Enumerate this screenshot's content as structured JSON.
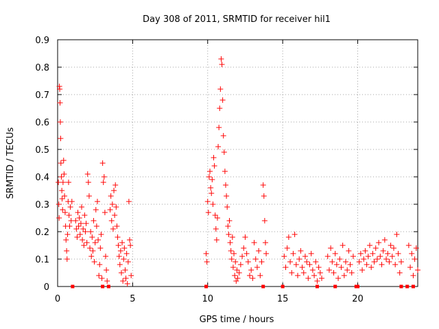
{
  "chart_data": {
    "type": "scatter",
    "title": "Day 308 of 2011, SRMTID for receiver hil1",
    "xlabel": "GPS time / hours",
    "ylabel": "SRMTID / TECUs",
    "xlim": [
      0,
      24
    ],
    "ylim": [
      0,
      0.9
    ],
    "xticks": [
      0,
      5,
      10,
      15,
      20
    ],
    "xtick_labels": [
      "0",
      "5",
      "10",
      "15",
      "20"
    ],
    "yticks": [
      0,
      0.1,
      0.2,
      0.3,
      0.4,
      0.5,
      0.6,
      0.7,
      0.8,
      0.9
    ],
    "ytick_labels": [
      "0",
      "0.1",
      "0.2",
      "0.3",
      "0.4",
      "0.5",
      "0.6",
      "0.7",
      "0.8",
      "0.9"
    ],
    "grid": true,
    "marker": "+",
    "color": "#ff0000",
    "series": [
      {
        "name": "SRMTID",
        "points": [
          [
            0.05,
            0.38
          ],
          [
            0.08,
            0.3
          ],
          [
            0.1,
            0.25
          ],
          [
            0.12,
            0.73
          ],
          [
            0.14,
            0.72
          ],
          [
            0.16,
            0.67
          ],
          [
            0.18,
            0.6
          ],
          [
            0.2,
            0.54
          ],
          [
            0.22,
            0.45
          ],
          [
            0.25,
            0.4
          ],
          [
            0.28,
            0.35
          ],
          [
            0.3,
            0.32
          ],
          [
            0.33,
            0.28
          ],
          [
            0.36,
            0.38
          ],
          [
            0.4,
            0.46
          ],
          [
            0.43,
            0.41
          ],
          [
            0.46,
            0.33
          ],
          [
            0.5,
            0.27
          ],
          [
            0.53,
            0.22
          ],
          [
            0.56,
            0.17
          ],
          [
            0.6,
            0.13
          ],
          [
            0.63,
            0.1
          ],
          [
            0.66,
            0.19
          ],
          [
            0.7,
            0.31
          ],
          [
            0.73,
            0.38
          ],
          [
            0.76,
            0.26
          ],
          [
            0.8,
            0.22
          ],
          [
            0.85,
            0.29
          ],
          [
            0.9,
            0.24
          ],
          [
            0.95,
            0.31
          ],
          [
            1.2,
            0.24
          ],
          [
            1.25,
            0.21
          ],
          [
            1.3,
            0.18
          ],
          [
            1.35,
            0.27
          ],
          [
            1.4,
            0.22
          ],
          [
            1.45,
            0.25
          ],
          [
            1.5,
            0.19
          ],
          [
            1.55,
            0.23
          ],
          [
            1.6,
            0.29
          ],
          [
            1.65,
            0.17
          ],
          [
            1.7,
            0.21
          ],
          [
            1.75,
            0.15
          ],
          [
            1.8,
            0.26
          ],
          [
            1.85,
            0.2
          ],
          [
            1.9,
            0.23
          ],
          [
            1.95,
            0.16
          ],
          [
            2.0,
            0.41
          ],
          [
            2.05,
            0.38
          ],
          [
            2.1,
            0.33
          ],
          [
            2.15,
            0.14
          ],
          [
            2.2,
            0.2
          ],
          [
            2.25,
            0.11
          ],
          [
            2.3,
            0.18
          ],
          [
            2.35,
            0.13
          ],
          [
            2.4,
            0.24
          ],
          [
            2.45,
            0.09
          ],
          [
            2.5,
            0.16
          ],
          [
            2.55,
            0.28
          ],
          [
            2.6,
            0.22
          ],
          [
            2.65,
            0.31
          ],
          [
            2.7,
            0.17
          ],
          [
            2.75,
            0.04
          ],
          [
            2.8,
            0.08
          ],
          [
            2.85,
            0.14
          ],
          [
            2.9,
            0.19
          ],
          [
            2.95,
            0.03
          ],
          [
            3.0,
            0.45
          ],
          [
            3.05,
            0.38
          ],
          [
            3.1,
            0.4
          ],
          [
            3.15,
            0.27
          ],
          [
            3.2,
            0.11
          ],
          [
            3.25,
            0.06
          ],
          [
            3.3,
            0.02
          ],
          [
            3.5,
            0.28
          ],
          [
            3.55,
            0.33
          ],
          [
            3.6,
            0.24
          ],
          [
            3.65,
            0.3
          ],
          [
            3.7,
            0.21
          ],
          [
            3.75,
            0.35
          ],
          [
            3.8,
            0.26
          ],
          [
            3.85,
            0.37
          ],
          [
            3.9,
            0.29
          ],
          [
            3.95,
            0.22
          ],
          [
            4.0,
            0.18
          ],
          [
            4.05,
            0.15
          ],
          [
            4.1,
            0.11
          ],
          [
            4.15,
            0.08
          ],
          [
            4.2,
            0.13
          ],
          [
            4.25,
            0.05
          ],
          [
            4.3,
            0.16
          ],
          [
            4.35,
            0.02
          ],
          [
            4.4,
            0.1
          ],
          [
            4.45,
            0.14
          ],
          [
            4.5,
            0.06
          ],
          [
            4.55,
            0.03
          ],
          [
            4.6,
            0.12
          ],
          [
            4.65,
            0.01
          ],
          [
            4.7,
            0.09
          ],
          [
            4.75,
            0.31
          ],
          [
            4.8,
            0.17
          ],
          [
            4.85,
            0.15
          ],
          [
            4.9,
            0.04
          ],
          [
            9.9,
            0.12
          ],
          [
            9.95,
            0.09
          ],
          [
            10.0,
            0.31
          ],
          [
            10.05,
            0.27
          ],
          [
            10.1,
            0.4
          ],
          [
            10.15,
            0.42
          ],
          [
            10.2,
            0.36
          ],
          [
            10.25,
            0.34
          ],
          [
            10.3,
            0.39
          ],
          [
            10.35,
            0.3
          ],
          [
            10.4,
            0.47
          ],
          [
            10.45,
            0.44
          ],
          [
            10.5,
            0.26
          ],
          [
            10.55,
            0.21
          ],
          [
            10.6,
            0.17
          ],
          [
            10.65,
            0.25
          ],
          [
            10.7,
            0.51
          ],
          [
            10.75,
            0.58
          ],
          [
            10.8,
            0.65
          ],
          [
            10.85,
            0.72
          ],
          [
            10.9,
            0.83
          ],
          [
            10.95,
            0.81
          ],
          [
            11.0,
            0.68
          ],
          [
            11.05,
            0.55
          ],
          [
            11.1,
            0.49
          ],
          [
            11.15,
            0.42
          ],
          [
            11.2,
            0.37
          ],
          [
            11.25,
            0.33
          ],
          [
            11.3,
            0.29
          ],
          [
            11.35,
            0.22
          ],
          [
            11.4,
            0.19
          ],
          [
            11.45,
            0.24
          ],
          [
            11.5,
            0.16
          ],
          [
            11.55,
            0.13
          ],
          [
            11.6,
            0.1
          ],
          [
            11.65,
            0.18
          ],
          [
            11.7,
            0.07
          ],
          [
            11.75,
            0.12
          ],
          [
            11.8,
            0.04
          ],
          [
            11.85,
            0.09
          ],
          [
            11.9,
            0.02
          ],
          [
            11.95,
            0.06
          ],
          [
            12.0,
            0.03
          ],
          [
            12.1,
            0.05
          ],
          [
            12.2,
            0.08
          ],
          [
            12.3,
            0.11
          ],
          [
            12.4,
            0.14
          ],
          [
            12.5,
            0.18
          ],
          [
            12.6,
            0.12
          ],
          [
            12.7,
            0.09
          ],
          [
            12.8,
            0.04
          ],
          [
            12.9,
            0.06
          ],
          [
            13.0,
            0.03
          ],
          [
            13.1,
            0.16
          ],
          [
            13.2,
            0.1
          ],
          [
            13.3,
            0.07
          ],
          [
            13.4,
            0.13
          ],
          [
            13.5,
            0.04
          ],
          [
            13.6,
            0.09
          ],
          [
            13.7,
            0.37
          ],
          [
            13.75,
            0.33
          ],
          [
            13.8,
            0.24
          ],
          [
            13.85,
            0.16
          ],
          [
            13.9,
            0.12
          ],
          [
            15.1,
            0.11
          ],
          [
            15.2,
            0.07
          ],
          [
            15.3,
            0.14
          ],
          [
            15.4,
            0.18
          ],
          [
            15.5,
            0.09
          ],
          [
            15.6,
            0.05
          ],
          [
            15.7,
            0.12
          ],
          [
            15.8,
            0.19
          ],
          [
            15.9,
            0.08
          ],
          [
            16.0,
            0.04
          ],
          [
            16.1,
            0.1
          ],
          [
            16.2,
            0.13
          ],
          [
            16.3,
            0.07
          ],
          [
            16.4,
            0.05
          ],
          [
            16.5,
            0.11
          ],
          [
            16.6,
            0.09
          ],
          [
            16.7,
            0.03
          ],
          [
            16.8,
            0.08
          ],
          [
            16.9,
            0.12
          ],
          [
            17.0,
            0.06
          ],
          [
            17.1,
            0.04
          ],
          [
            17.2,
            0.09
          ],
          [
            17.3,
            0.02
          ],
          [
            17.4,
            0.07
          ],
          [
            17.5,
            0.05
          ],
          [
            17.6,
            0.03
          ],
          [
            18.0,
            0.11
          ],
          [
            18.1,
            0.06
          ],
          [
            18.2,
            0.14
          ],
          [
            18.3,
            0.09
          ],
          [
            18.4,
            0.05
          ],
          [
            18.5,
            0.12
          ],
          [
            18.6,
            0.08
          ],
          [
            18.7,
            0.03
          ],
          [
            18.8,
            0.1
          ],
          [
            18.9,
            0.07
          ],
          [
            19.0,
            0.15
          ],
          [
            19.1,
            0.04
          ],
          [
            19.2,
            0.09
          ],
          [
            19.3,
            0.06
          ],
          [
            19.4,
            0.13
          ],
          [
            19.5,
            0.08
          ],
          [
            19.6,
            0.05
          ],
          [
            19.7,
            0.11
          ],
          [
            20.1,
            0.09
          ],
          [
            20.2,
            0.12
          ],
          [
            20.3,
            0.06
          ],
          [
            20.4,
            0.1
          ],
          [
            20.5,
            0.13
          ],
          [
            20.6,
            0.08
          ],
          [
            20.7,
            0.11
          ],
          [
            20.8,
            0.15
          ],
          [
            20.9,
            0.07
          ],
          [
            21.0,
            0.12
          ],
          [
            21.1,
            0.09
          ],
          [
            21.2,
            0.14
          ],
          [
            21.3,
            0.1
          ],
          [
            21.4,
            0.16
          ],
          [
            21.5,
            0.11
          ],
          [
            21.6,
            0.08
          ],
          [
            21.7,
            0.13
          ],
          [
            21.8,
            0.17
          ],
          [
            21.9,
            0.1
          ],
          [
            22.0,
            0.12
          ],
          [
            22.1,
            0.09
          ],
          [
            22.2,
            0.15
          ],
          [
            22.3,
            0.11
          ],
          [
            22.4,
            0.14
          ],
          [
            22.5,
            0.08
          ],
          [
            22.6,
            0.19
          ],
          [
            22.7,
            0.12
          ],
          [
            22.8,
            0.05
          ],
          [
            22.9,
            0.09
          ],
          [
            23.4,
            0.15
          ],
          [
            23.5,
            0.07
          ],
          [
            23.6,
            0.12
          ],
          [
            23.7,
            0.04
          ],
          [
            23.8,
            0.1
          ],
          [
            23.9,
            0.14
          ],
          [
            24.0,
            0.06
          ]
        ]
      }
    ],
    "zero_points_x": [
      1.0,
      3.0,
      3.4,
      9.9,
      13.7,
      15.0,
      17.3,
      18.5,
      19.9,
      20.0,
      22.9,
      23.3,
      23.7
    ]
  }
}
